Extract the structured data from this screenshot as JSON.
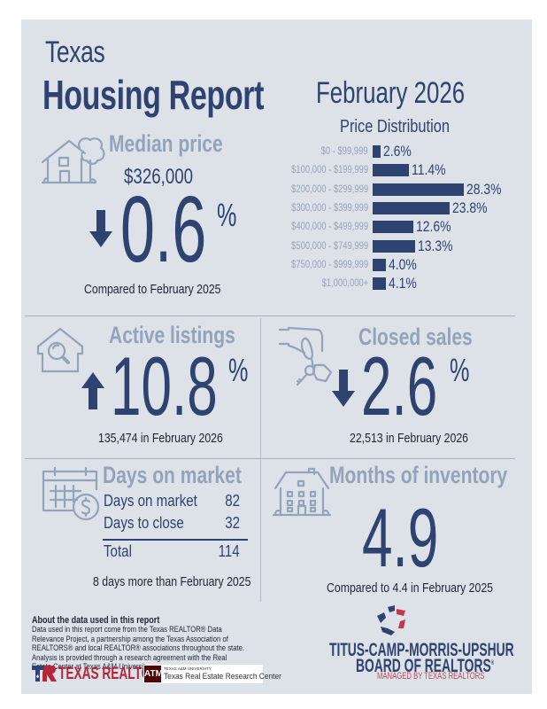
{
  "header": {
    "title_small": "Texas",
    "title_big": "Housing Report",
    "report_date": "February 2026"
  },
  "price_distribution": {
    "title": "Price Distribution",
    "rows": [
      {
        "label": "$0 - $99,999",
        "value": 2.6,
        "display": "2.6%"
      },
      {
        "label": "$100,000 - $199,999",
        "value": 11.4,
        "display": "11.4%"
      },
      {
        "label": "$200,000 - $299,999",
        "value": 28.3,
        "display": "28.3%"
      },
      {
        "label": "$300,000 - $399,999",
        "value": 23.8,
        "display": "23.8%"
      },
      {
        "label": "$400,000 - $499,999",
        "value": 12.6,
        "display": "12.6%"
      },
      {
        "label": "$500,000 - $749,999",
        "value": 13.3,
        "display": "13.3%"
      },
      {
        "label": "$750,000 - $999,999",
        "value": 4.0,
        "display": "4.0%"
      },
      {
        "label": "$1,000,000+",
        "value": 4.1,
        "display": "4.1%"
      }
    ]
  },
  "chart_data": {
    "type": "bar",
    "orientation": "horizontal",
    "title": "Price Distribution",
    "categories": [
      "$0 - $99,999",
      "$100,000 - $199,999",
      "$200,000 - $299,999",
      "$300,000 - $399,999",
      "$400,000 - $499,999",
      "$500,000 - $749,999",
      "$750,000 - $999,999",
      "$1,000,000+"
    ],
    "values": [
      2.6,
      11.4,
      28.3,
      23.8,
      12.6,
      13.3,
      4.0,
      4.1
    ],
    "unit": "%",
    "xlabel": "",
    "ylabel": "",
    "grid": false,
    "legend": "none"
  },
  "median_price": {
    "heading": "Median price",
    "price": "$326,000",
    "direction": "down",
    "change": "0.6",
    "pct_symbol": "%",
    "caption": "Compared to February 2025"
  },
  "active_listings": {
    "heading": "Active listings",
    "direction": "up",
    "change": "10.8",
    "pct_symbol": "%",
    "caption": "135,474 in February 2026"
  },
  "closed_sales": {
    "heading": "Closed sales",
    "direction": "down",
    "change": "2.6",
    "pct_symbol": "%",
    "caption": "22,513 in February 2026"
  },
  "days_on_market": {
    "heading": "Days on market",
    "rows": [
      {
        "label": "Days on market",
        "value": "82"
      },
      {
        "label": "Days to close",
        "value": "32"
      }
    ],
    "total_label": "Total",
    "total_value": "114",
    "caption": "8 days more than February 2025"
  },
  "months_inventory": {
    "heading": "Months of inventory",
    "value": "4.9",
    "caption": "Compared to 4.4 in February 2025"
  },
  "about": {
    "title": "About the data used in this report",
    "text": "Data used in this report come from the Texas REALTOR® Data Relevance Project, a partnership among the Texas Association of REALTORS® and local REALTOR® associations throughout the state. Analysis is provided through a research agreement with the Real Estate Center at Texas A&M University."
  },
  "logos": {
    "texas_realtors": "TEXAS REALTORS",
    "tamu_small": "TEXAS A&M UNIVERSITY",
    "tamu_name": "Texas Real Estate Research Center",
    "tamu_mark": "ATM",
    "board_line1": "TITUS-CAMP-MORRIS-UPSHUR",
    "board_line2": "BOARD OF REALTORS",
    "board_reg": "®",
    "board_sub": "MANAGED BY TEXAS REALTORS"
  },
  "colors": {
    "primary": "#2f4370",
    "muted": "#93a4ba",
    "panel": "#dde1e8",
    "red": "#b4263a"
  }
}
